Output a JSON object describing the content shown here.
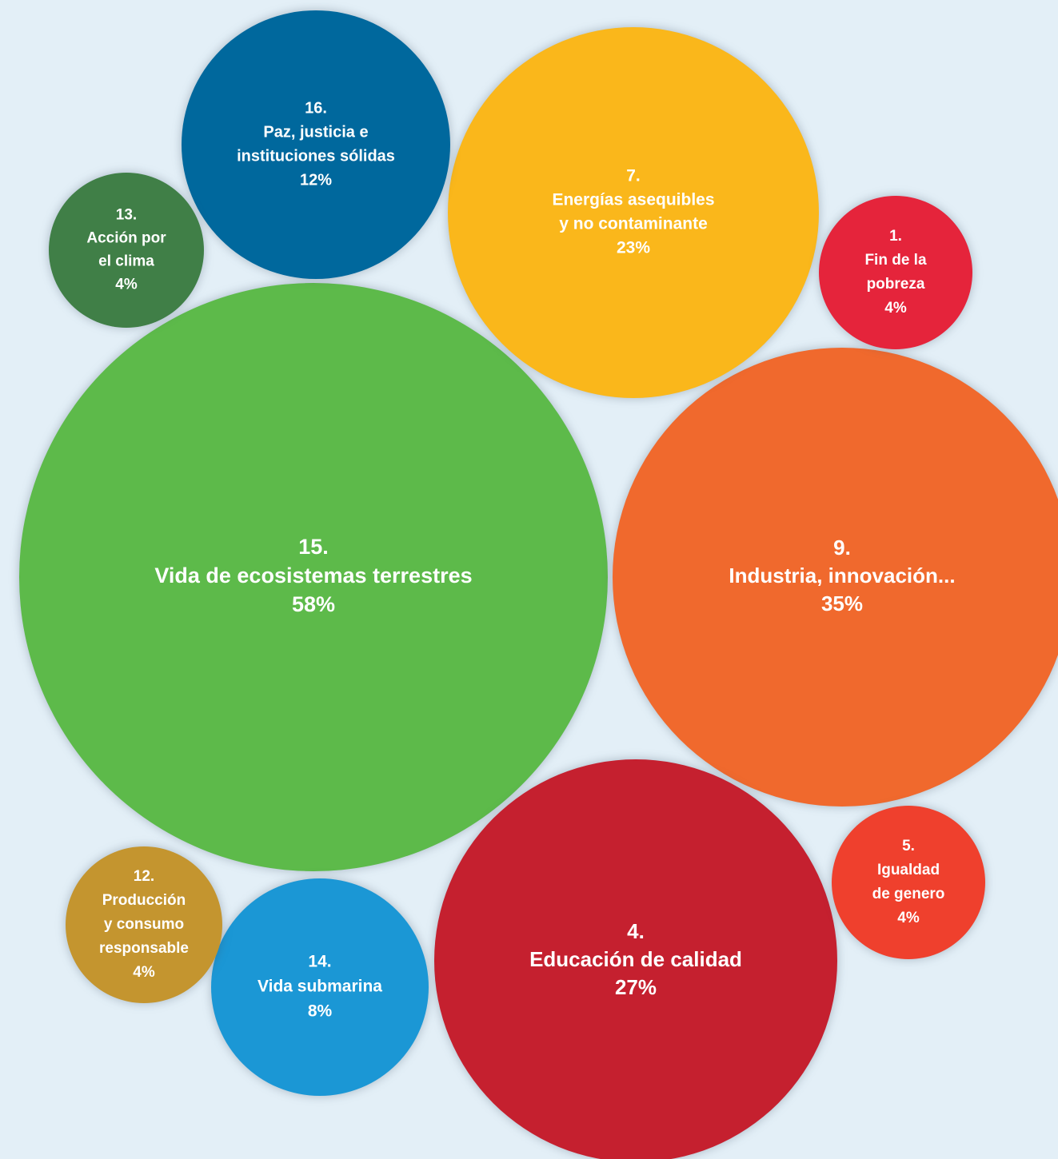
{
  "chart_data": {
    "type": "bubble",
    "background": "#e3eff7",
    "bubbles": [
      {
        "id": "15",
        "number": "15.",
        "lines": [
          "Vida de ecosistemas terrestres"
        ],
        "value": 58,
        "label": "58%",
        "color": "#5dba4a"
      },
      {
        "id": "9",
        "number": "9.",
        "lines": [
          "Industria, innovación..."
        ],
        "value": 35,
        "label": "35%",
        "color": "#f0692d"
      },
      {
        "id": "4",
        "number": "4.",
        "lines": [
          "Educación de calidad"
        ],
        "value": 27,
        "label": "27%",
        "color": "#c5202f"
      },
      {
        "id": "7",
        "number": "7.",
        "lines": [
          "Energías asequibles",
          "y no contaminante"
        ],
        "value": 23,
        "label": "23%",
        "color": "#fab71b"
      },
      {
        "id": "16",
        "number": "16.",
        "lines": [
          "Paz, justicia e",
          "instituciones sólidas"
        ],
        "value": 12,
        "label": "12%",
        "color": "#00689d"
      },
      {
        "id": "14",
        "number": "14.",
        "lines": [
          "Vida submarina"
        ],
        "value": 8,
        "label": "8%",
        "color": "#1b97d5"
      },
      {
        "id": "13",
        "number": "13.",
        "lines": [
          "Acción por",
          "el clima"
        ],
        "value": 4,
        "label": "4%",
        "color": "#407f47"
      },
      {
        "id": "1",
        "number": "1.",
        "lines": [
          "Fin de la",
          "pobreza"
        ],
        "value": 4,
        "label": "4%",
        "color": "#e5243b"
      },
      {
        "id": "5",
        "number": "5.",
        "lines": [
          "Igualdad",
          "de genero"
        ],
        "value": 4,
        "label": "4%",
        "color": "#ef402d"
      },
      {
        "id": "12",
        "number": "12.",
        "lines": [
          "Producción",
          "y consumo",
          "responsable"
        ],
        "value": 4,
        "label": "4%",
        "color": "#c4952f"
      }
    ]
  }
}
